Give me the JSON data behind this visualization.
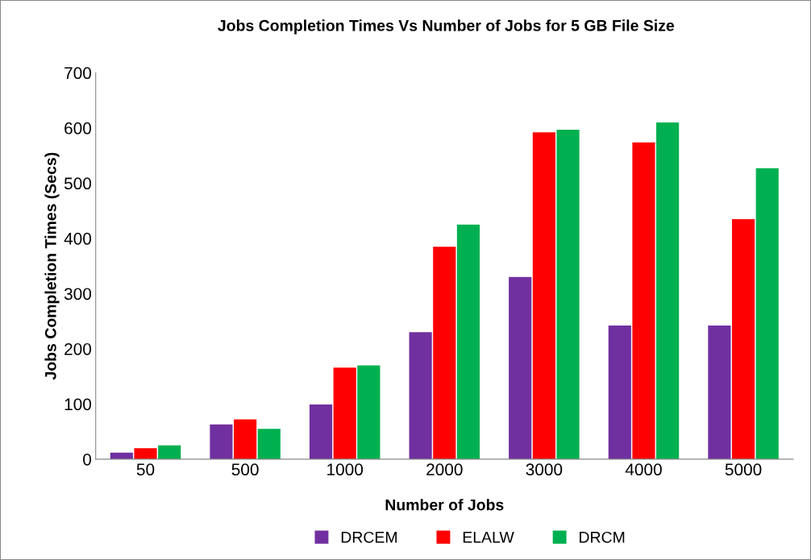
{
  "chart_data": {
    "type": "bar",
    "title": "Jobs Completion Times Vs Number of Jobs for 5 GB File Size",
    "xlabel": "Number of Jobs",
    "ylabel": "Jobs Completion Times (Secs)",
    "categories": [
      "50",
      "500",
      "1000",
      "2000",
      "3000",
      "4000",
      "5000"
    ],
    "series": [
      {
        "name": "DRCEM",
        "color": "#7030a0",
        "values": [
          12,
          63,
          99,
          230,
          330,
          242,
          242
        ]
      },
      {
        "name": "ELALW",
        "color": "#ff0000",
        "values": [
          20,
          72,
          166,
          385,
          592,
          574,
          435
        ]
      },
      {
        "name": "DRCM",
        "color": "#00b050",
        "values": [
          25,
          55,
          170,
          425,
          597,
          610,
          527
        ]
      }
    ],
    "ylim": [
      0,
      700
    ],
    "yticks": [
      0,
      100,
      200,
      300,
      400,
      500,
      600,
      700
    ],
    "grid": false,
    "legend": "bottom"
  }
}
